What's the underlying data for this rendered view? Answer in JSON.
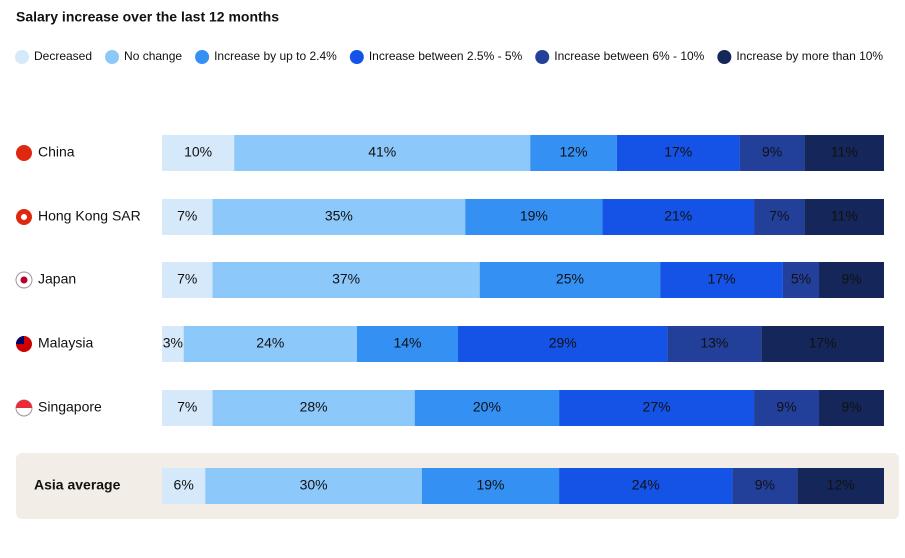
{
  "chart_data": {
    "type": "bar",
    "orientation": "horizontal",
    "stacked": true,
    "title": "Salary increase over the last 12 months",
    "categories": [
      "China",
      "Hong Kong SAR",
      "Japan",
      "Malaysia",
      "Singapore",
      "Asia average"
    ],
    "series": [
      {
        "name": "Decreased",
        "color": "#d6e9fa",
        "values": [
          10,
          7,
          7,
          3,
          7,
          6
        ],
        "value_labels": [
          "10%",
          "7%",
          "7%",
          "3%",
          "7%",
          "6%"
        ]
      },
      {
        "name": "No change",
        "color": "#8cc8fa",
        "values": [
          41,
          35,
          37,
          24,
          28,
          30
        ],
        "value_labels": [
          "41%",
          "35%",
          "37%",
          "24%",
          "28%",
          "30%"
        ]
      },
      {
        "name": "Increase by up to 2.4%",
        "color": "#3490f2",
        "values": [
          12,
          19,
          25,
          14,
          20,
          19
        ],
        "value_labels": [
          "12%",
          "19%",
          "25%",
          "14%",
          "20%",
          "19%"
        ]
      },
      {
        "name": "Increase between 2.5% - 5%",
        "color": "#1553e6",
        "values": [
          17,
          21,
          17,
          29,
          27,
          24
        ],
        "value_labels": [
          "17%",
          "21%",
          "17%",
          "29%",
          "27%",
          "24%"
        ]
      },
      {
        "name": "Increase between 6% - 10%",
        "color": "#223f99",
        "values": [
          9,
          7,
          5,
          13,
          9,
          9
        ],
        "value_labels": [
          "9%",
          "7%",
          "5%",
          "13%",
          "9%",
          "9%"
        ]
      },
      {
        "name": "Increase by more than 10%",
        "color": "#14265a",
        "values": [
          11,
          11,
          9,
          17,
          9,
          12
        ],
        "value_labels": [
          "11%",
          "11%",
          "9%",
          "17%",
          "9%",
          "12%"
        ]
      }
    ]
  }
}
